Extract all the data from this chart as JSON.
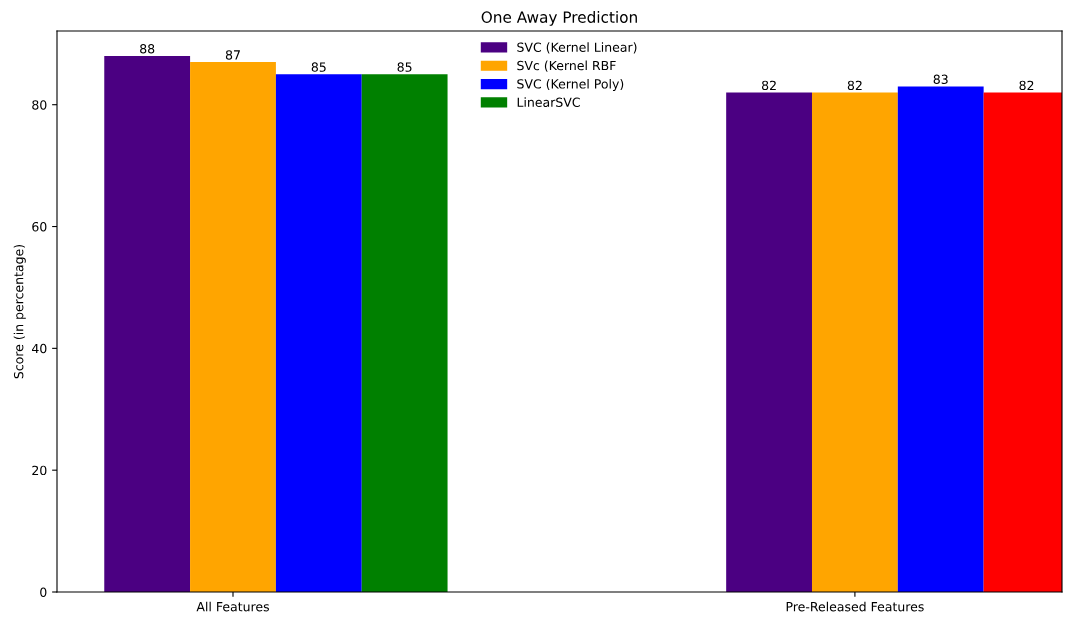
{
  "chart_data": {
    "type": "bar",
    "title": "One Away Prediction",
    "ylabel": "Score (in percentage)",
    "categories": [
      "All Features",
      "Pre-Released Features"
    ],
    "series": [
      {
        "name": "SVC (Kernel Linear)",
        "color": "#4b0082",
        "values": [
          88,
          82
        ]
      },
      {
        "name": "SVc (Kernel RBF",
        "color": "#ffa500",
        "values": [
          87,
          82
        ]
      },
      {
        "name": "SVC (Kernel Poly)",
        "color": "#0000ff",
        "values": [
          85,
          83
        ]
      },
      {
        "name": "LinearSVC",
        "color": "#008000",
        "colors": [
          "#008000",
          "#ff0000"
        ],
        "values": [
          85,
          82
        ]
      }
    ],
    "ylim": [
      0,
      92.1
    ],
    "yticks": [
      0,
      20,
      40,
      60,
      80
    ],
    "data_labels": true,
    "legend": "top",
    "grid": false
  }
}
